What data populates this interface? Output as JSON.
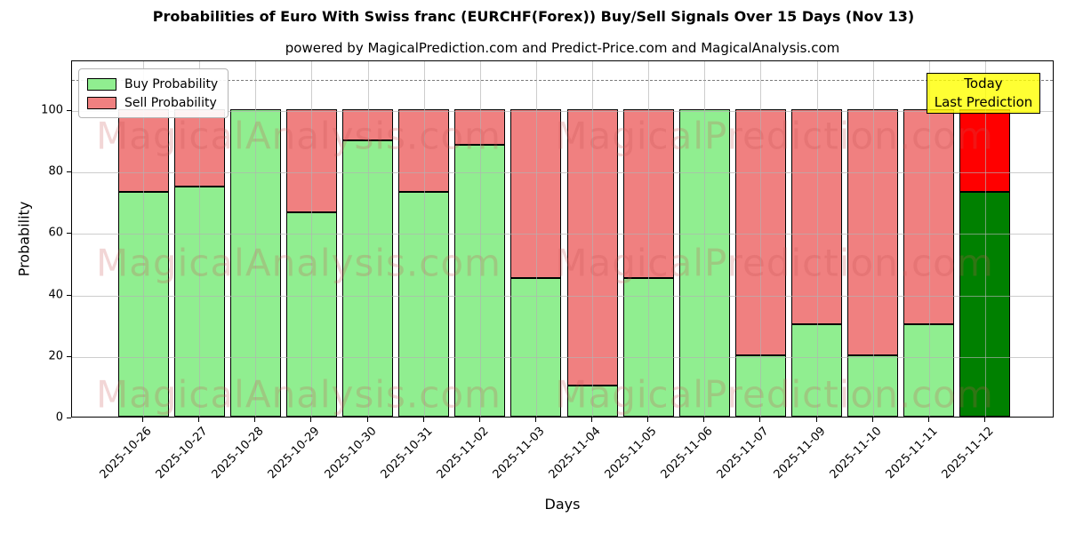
{
  "figure": {
    "title": "Probabilities of Euro With Swiss franc (EURCHF(Forex)) Buy/Sell Signals Over 15 Days (Nov 13)",
    "subtitle": "powered by MagicalPrediction.com and Predict-Price.com and MagicalAnalysis.com"
  },
  "legend": {
    "items": [
      {
        "label": "Buy Probability",
        "color": "#90ee90"
      },
      {
        "label": "Sell Probability",
        "color": "#f08080"
      }
    ]
  },
  "annotation": {
    "line1": "Today",
    "line2": "Last Prediction",
    "bg_color": "#ffff00"
  },
  "watermark": {
    "left_text": "MagicalAnalysis.com",
    "right_text": "MagicalPrediction.com"
  },
  "chart_data": {
    "type": "bar",
    "stacked": true,
    "title": "Probabilities of Euro With Swiss franc (EURCHF(Forex)) Buy/Sell Signals Over 15 Days (Nov 13)",
    "subtitle": "powered by MagicalPrediction.com and Predict-Price.com and MagicalAnalysis.com",
    "xlabel": "Days",
    "ylabel": "Probability",
    "categories": [
      "2025-10-26",
      "2025-10-27",
      "2025-10-28",
      "2025-10-29",
      "2025-10-30",
      "2025-10-31",
      "2025-11-02",
      "2025-11-03",
      "2025-11-04",
      "2025-11-05",
      "2025-11-06",
      "2025-11-07",
      "2025-11-09",
      "2025-11-10",
      "2025-11-11",
      "2025-11-12"
    ],
    "series": [
      {
        "name": "Buy Probability",
        "color": "#90ee90",
        "values": [
          73,
          75,
          100,
          66.5,
          90,
          73,
          88.5,
          45,
          10,
          45,
          100,
          20,
          30,
          20,
          30,
          73
        ]
      },
      {
        "name": "Sell Probability",
        "color": "#f08080",
        "values": [
          27,
          25,
          0,
          33.5,
          10,
          27,
          11.5,
          55,
          90,
          55,
          0,
          80,
          70,
          80,
          70,
          27
        ]
      }
    ],
    "today_bar": {
      "index": 15,
      "buy_color": "#008000",
      "sell_color": "#ff0000"
    },
    "yticks": [
      0,
      20,
      40,
      60,
      80,
      100
    ],
    "ylim": [
      0,
      116.2
    ],
    "dashed_hline": 110,
    "grid": true,
    "legend_position": "upper left",
    "bar_edge_color": "#000000"
  }
}
